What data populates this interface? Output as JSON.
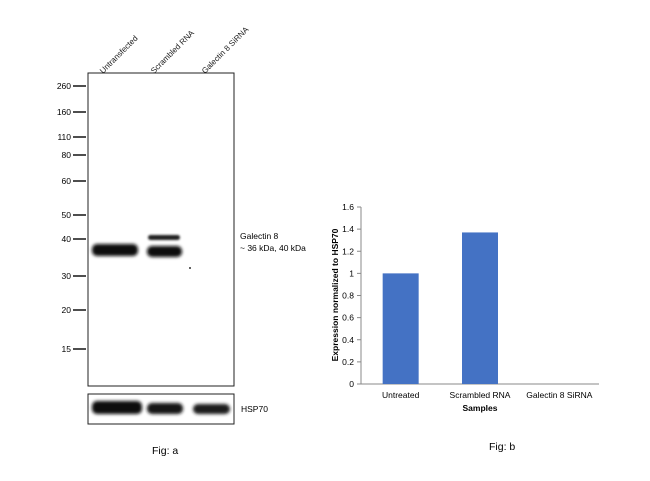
{
  "blot": {
    "lanes": [
      "Untransfected",
      "Scrambled RNA",
      "Galectin 8 SiRNA"
    ],
    "markers": [
      "260",
      "160",
      "110",
      "80",
      "60",
      "50",
      "40",
      "30",
      "20",
      "15"
    ],
    "band_label_1": "Galectin 8",
    "band_label_2": "~ 36 kDa, 40 kDa",
    "loading_label": "HSP70",
    "caption": "Fig: a"
  },
  "chart_data": {
    "type": "bar",
    "categories": [
      "Untreated",
      "Scrambled RNA",
      "Galectin 8 SiRNA"
    ],
    "values": [
      1.0,
      1.37,
      0.0
    ],
    "xlabel": "Samples",
    "ylabel": "Expression normalized to HSP70",
    "ylim": [
      0,
      1.6
    ],
    "yticks": [
      "0",
      "0.2",
      "0.4",
      "0.6",
      "0.8",
      "1",
      "1.2",
      "1.4",
      "1.6"
    ],
    "bar_color": "#4472c4",
    "grid": false,
    "caption": "Fig: b"
  }
}
